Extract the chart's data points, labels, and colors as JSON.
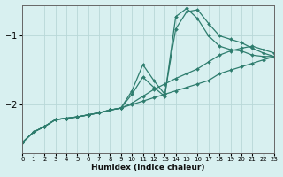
{
  "xlabel": "Humidex (Indice chaleur)",
  "bg_color": "#d8f0f0",
  "grid_color": "#b8d8d8",
  "line_color": "#2e7d6e",
  "marker": "D",
  "markersize": 2.0,
  "linewidth": 0.9,
  "xlim": [
    0,
    23
  ],
  "ylim": [
    -2.7,
    -0.55
  ],
  "yticks": [
    -2,
    -1
  ],
  "xticks": [
    0,
    1,
    2,
    3,
    4,
    5,
    6,
    7,
    8,
    9,
    10,
    11,
    12,
    13,
    14,
    15,
    16,
    17,
    18,
    19,
    20,
    21,
    22,
    23
  ],
  "series": [
    {
      "x": [
        0,
        1,
        2,
        3,
        4,
        5,
        6,
        7,
        8,
        9,
        10,
        11,
        12,
        13,
        14,
        15,
        16,
        17,
        18,
        19,
        20,
        21,
        22,
        23
      ],
      "y": [
        -2.55,
        -2.4,
        -2.32,
        -2.22,
        -2.2,
        -2.18,
        -2.15,
        -2.12,
        -2.08,
        -2.05,
        -2.0,
        -1.95,
        -1.9,
        -1.85,
        -1.8,
        -1.75,
        -1.7,
        -1.65,
        -1.55,
        -1.5,
        -1.45,
        -1.4,
        -1.35,
        -1.3
      ]
    },
    {
      "x": [
        0,
        1,
        2,
        3,
        4,
        5,
        6,
        7,
        8,
        9,
        10,
        11,
        12,
        13,
        14,
        15,
        16,
        17,
        18,
        19,
        20,
        21,
        22,
        23
      ],
      "y": [
        -2.55,
        -2.4,
        -2.32,
        -2.22,
        -2.2,
        -2.18,
        -2.15,
        -2.12,
        -2.08,
        -2.05,
        -1.98,
        -1.88,
        -1.78,
        -1.7,
        -1.62,
        -1.55,
        -1.48,
        -1.38,
        -1.28,
        -1.22,
        -1.18,
        -1.15,
        -1.2,
        -1.25
      ]
    },
    {
      "x": [
        0,
        1,
        2,
        3,
        4,
        5,
        6,
        7,
        8,
        9,
        10,
        11,
        12,
        13,
        14,
        15,
        16,
        17,
        18,
        19,
        20,
        21,
        22,
        23
      ],
      "y": [
        -2.55,
        -2.4,
        -2.32,
        -2.22,
        -2.2,
        -2.18,
        -2.15,
        -2.12,
        -2.08,
        -2.05,
        -1.85,
        -1.6,
        -1.75,
        -1.88,
        -0.72,
        -0.6,
        -0.75,
        -1.0,
        -1.15,
        -1.2,
        -1.22,
        -1.28,
        -1.3,
        -1.3
      ]
    },
    {
      "x": [
        0,
        1,
        2,
        3,
        4,
        5,
        6,
        7,
        8,
        9,
        10,
        11,
        12,
        13,
        14,
        15,
        16,
        17,
        18,
        19,
        20,
        21,
        22,
        23
      ],
      "y": [
        -2.55,
        -2.4,
        -2.32,
        -2.22,
        -2.2,
        -2.18,
        -2.15,
        -2.12,
        -2.08,
        -2.05,
        -1.8,
        -1.42,
        -1.65,
        -1.85,
        -0.9,
        -0.65,
        -0.62,
        -0.82,
        -1.0,
        -1.05,
        -1.1,
        -1.18,
        -1.25,
        -1.3
      ]
    }
  ]
}
